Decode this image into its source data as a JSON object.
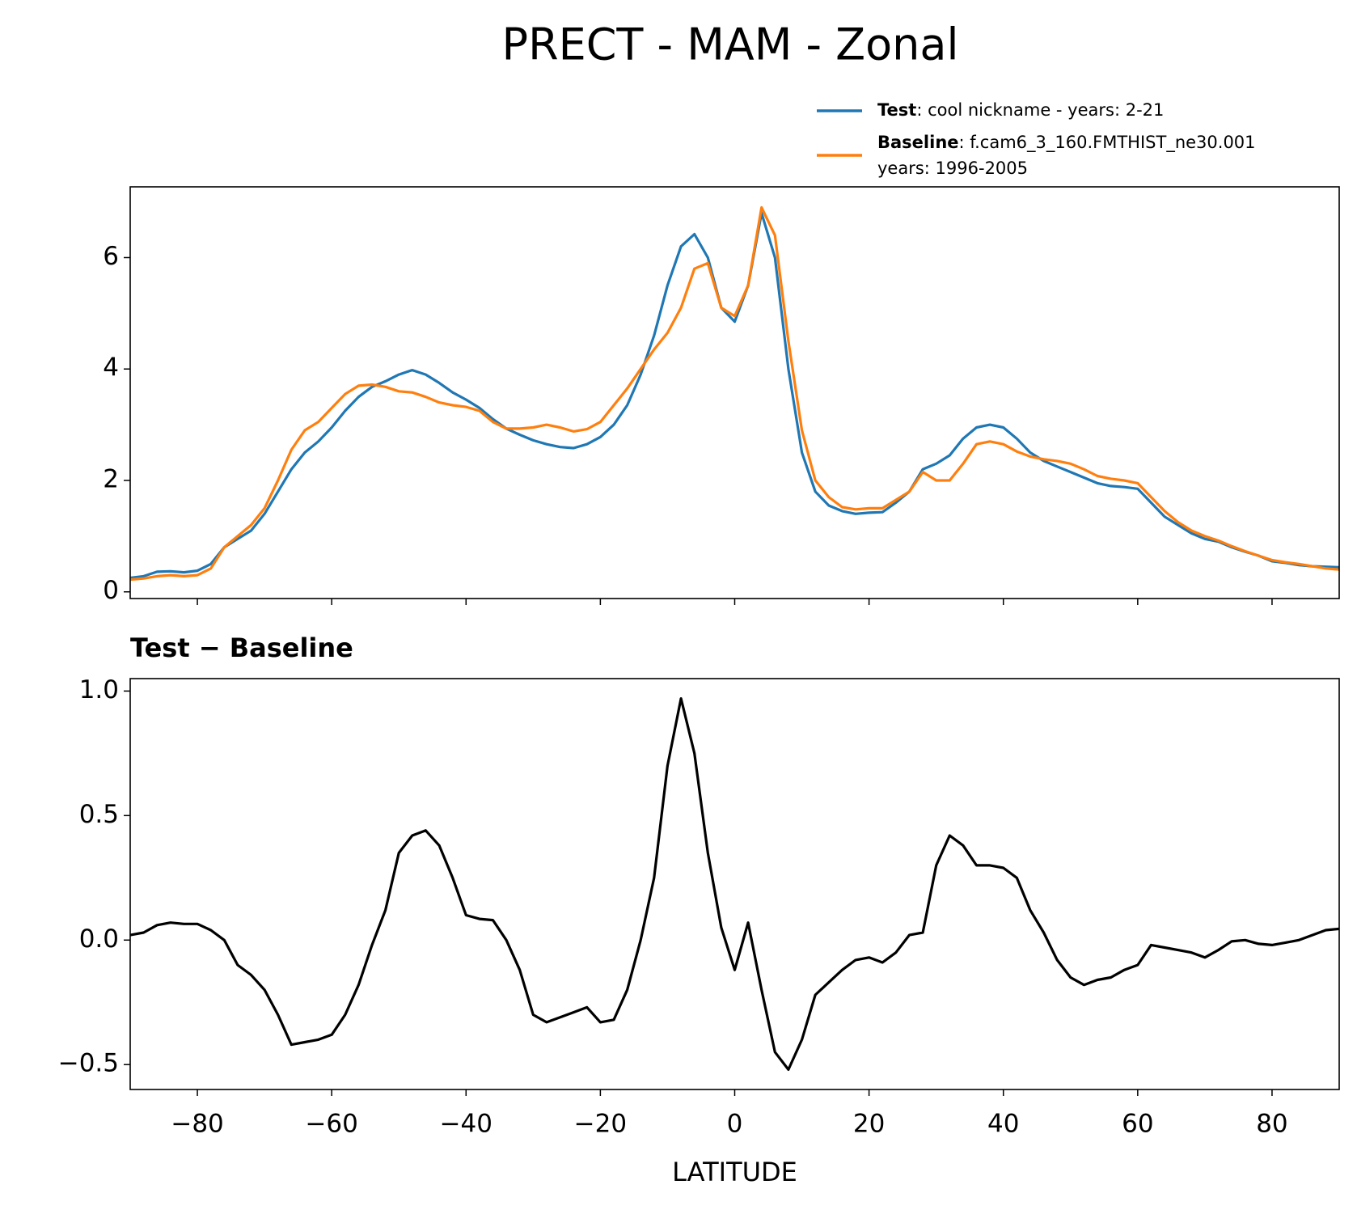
{
  "chart_data": [
    {
      "type": "line",
      "title": "PRECT - MAM - Zonal",
      "x": [
        -90,
        -88,
        -86,
        -84,
        -82,
        -80,
        -78,
        -76,
        -74,
        -72,
        -70,
        -68,
        -66,
        -64,
        -62,
        -60,
        -58,
        -56,
        -54,
        -52,
        -50,
        -48,
        -46,
        -44,
        -42,
        -40,
        -38,
        -36,
        -34,
        -32,
        -30,
        -28,
        -26,
        -24,
        -22,
        -20,
        -18,
        -16,
        -14,
        -12,
        -10,
        -8,
        -6,
        -4,
        -2,
        0,
        2,
        4,
        6,
        8,
        10,
        12,
        14,
        16,
        18,
        20,
        22,
        24,
        26,
        28,
        30,
        32,
        34,
        36,
        38,
        40,
        42,
        44,
        46,
        48,
        50,
        52,
        54,
        56,
        58,
        60,
        62,
        64,
        66,
        68,
        70,
        72,
        74,
        76,
        78,
        80,
        82,
        84,
        86,
        88,
        90
      ],
      "series": [
        {
          "name": "Test",
          "description": [
            ": cool nickname - years: 2-21"
          ],
          "color": "#1f77b4",
          "values": [
            0.25,
            0.28,
            0.36,
            0.37,
            0.35,
            0.38,
            0.5,
            0.8,
            0.95,
            1.1,
            1.4,
            1.8,
            2.2,
            2.5,
            2.7,
            2.95,
            3.25,
            3.5,
            3.68,
            3.78,
            3.9,
            3.98,
            3.9,
            3.75,
            3.58,
            3.45,
            3.3,
            3.1,
            2.93,
            2.82,
            2.72,
            2.65,
            2.6,
            2.58,
            2.65,
            2.78,
            3.0,
            3.35,
            3.9,
            4.6,
            5.5,
            6.2,
            6.42,
            6.0,
            5.1,
            4.85,
            5.5,
            6.8,
            6.0,
            4.0,
            2.5,
            1.8,
            1.55,
            1.45,
            1.4,
            1.42,
            1.43,
            1.6,
            1.8,
            2.2,
            2.3,
            2.45,
            2.75,
            2.95,
            3.0,
            2.95,
            2.75,
            2.5,
            2.35,
            2.25,
            2.15,
            2.05,
            1.95,
            1.9,
            1.88,
            1.85,
            1.6,
            1.35,
            1.2,
            1.05,
            0.95,
            0.9,
            0.8,
            0.72,
            0.65,
            0.55,
            0.52,
            0.48,
            0.46,
            0.45,
            0.44
          ]
        },
        {
          "name": "Baseline",
          "description": [
            ": f.cam6_3_160.FMTHIST_ne30.001",
            "years: 1996-2005"
          ],
          "color": "#ff7f0e",
          "values": [
            0.22,
            0.24,
            0.28,
            0.3,
            0.28,
            0.3,
            0.42,
            0.8,
            1.0,
            1.2,
            1.5,
            2.0,
            2.55,
            2.9,
            3.05,
            3.3,
            3.55,
            3.7,
            3.72,
            3.68,
            3.6,
            3.58,
            3.5,
            3.4,
            3.35,
            3.32,
            3.25,
            3.05,
            2.93,
            2.93,
            2.95,
            3.0,
            2.95,
            2.88,
            2.92,
            3.05,
            3.35,
            3.65,
            4.0,
            4.35,
            4.65,
            5.1,
            5.8,
            5.9,
            5.1,
            4.95,
            5.5,
            6.9,
            6.4,
            4.5,
            2.9,
            2.0,
            1.7,
            1.52,
            1.48,
            1.5,
            1.5,
            1.65,
            1.8,
            2.15,
            2.0,
            2.0,
            2.3,
            2.65,
            2.7,
            2.65,
            2.52,
            2.43,
            2.38,
            2.35,
            2.3,
            2.2,
            2.08,
            2.03,
            2.0,
            1.95,
            1.7,
            1.45,
            1.25,
            1.1,
            1.0,
            0.92,
            0.82,
            0.73,
            0.65,
            0.57,
            0.53,
            0.5,
            0.46,
            0.42,
            0.4
          ]
        }
      ],
      "xlim": [
        -90,
        90
      ],
      "ylim": [
        -0.12,
        7.27
      ],
      "yticks": [
        0,
        2,
        4,
        6
      ],
      "xticks": [
        -80,
        -60,
        -40,
        -20,
        0,
        20,
        40,
        60,
        80
      ],
      "legend": "upper right"
    },
    {
      "type": "line",
      "title": "Test − Baseline",
      "xlabel": "LATITUDE",
      "x": [
        -90,
        -88,
        -86,
        -84,
        -82,
        -80,
        -78,
        -76,
        -74,
        -72,
        -70,
        -68,
        -66,
        -64,
        -62,
        -60,
        -58,
        -56,
        -54,
        -52,
        -50,
        -48,
        -46,
        -44,
        -42,
        -40,
        -38,
        -36,
        -34,
        -32,
        -30,
        -28,
        -26,
        -24,
        -22,
        -20,
        -18,
        -16,
        -14,
        -12,
        -10,
        -8,
        -6,
        -4,
        -2,
        0,
        2,
        4,
        6,
        8,
        10,
        12,
        14,
        16,
        18,
        20,
        22,
        24,
        26,
        28,
        30,
        32,
        34,
        36,
        38,
        40,
        42,
        44,
        46,
        48,
        50,
        52,
        54,
        56,
        58,
        60,
        62,
        64,
        66,
        68,
        70,
        72,
        74,
        76,
        78,
        80,
        82,
        84,
        86,
        88,
        90
      ],
      "series": [
        {
          "color": "#000000",
          "values": [
            0.02,
            0.03,
            0.06,
            0.07,
            0.065,
            0.065,
            0.04,
            0.0,
            -0.1,
            -0.14,
            -0.2,
            -0.3,
            -0.42,
            -0.41,
            -0.4,
            -0.38,
            -0.3,
            -0.18,
            -0.02,
            0.12,
            0.35,
            0.42,
            0.44,
            0.38,
            0.25,
            0.1,
            0.085,
            0.08,
            0.0,
            -0.12,
            -0.3,
            -0.33,
            -0.31,
            -0.29,
            -0.27,
            -0.33,
            -0.32,
            -0.2,
            0.0,
            0.25,
            0.7,
            0.97,
            0.75,
            0.35,
            0.05,
            -0.12,
            0.07,
            -0.2,
            -0.45,
            -0.52,
            -0.4,
            -0.22,
            -0.17,
            -0.12,
            -0.08,
            -0.07,
            -0.09,
            -0.05,
            0.02,
            0.03,
            0.3,
            0.42,
            0.38,
            0.3,
            0.3,
            0.29,
            0.25,
            0.12,
            0.03,
            -0.08,
            -0.15,
            -0.18,
            -0.16,
            -0.15,
            -0.12,
            -0.1,
            -0.02,
            -0.03,
            -0.04,
            -0.05,
            -0.07,
            -0.04,
            -0.005,
            0.0,
            -0.015,
            -0.02,
            -0.01,
            0.0,
            0.02,
            0.04,
            0.045
          ]
        }
      ],
      "xlim": [
        -90,
        90
      ],
      "ylim": [
        -0.6,
        1.05
      ],
      "yticks": [
        {
          "value": -0.5,
          "label": "−0.5"
        },
        {
          "value": 0,
          "label": "0.0"
        },
        0.5,
        {
          "value": 1,
          "label": "1.0"
        }
      ],
      "xticks": [
        {
          "value": -80,
          "label": "−80"
        },
        {
          "value": -60,
          "label": "−60"
        },
        {
          "value": -40,
          "label": "−40"
        },
        {
          "value": -20,
          "label": "−20"
        },
        0,
        20,
        40,
        60,
        80
      ]
    }
  ]
}
